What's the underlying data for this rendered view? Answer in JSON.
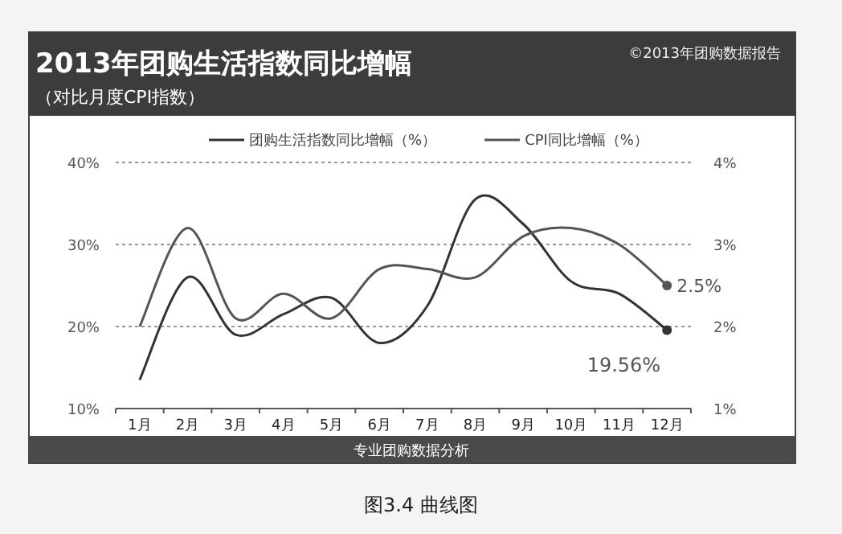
{
  "chart_data": {
    "type": "line",
    "title": "2013年团购生活指数同比增幅",
    "subtitle": "（对比月度CPI指数）",
    "annotations": [
      "©2013年团购数据报告",
      "专业团购数据分析",
      "图3.4  曲线图"
    ],
    "categories": [
      "1月",
      "2月",
      "3月",
      "4月",
      "5月",
      "6月",
      "7月",
      "8月",
      "9月",
      "10月",
      "11月",
      "12月"
    ],
    "series": [
      {
        "name": "团购生活指数同比增幅（%）",
        "color": "#333333",
        "values": [
          13.5,
          26,
          19,
          21.5,
          23.5,
          18,
          22.5,
          35.5,
          32.5,
          25.5,
          24,
          19.56
        ],
        "value_labels": [
          null,
          null,
          null,
          null,
          null,
          null,
          null,
          null,
          null,
          null,
          null,
          "19.56%"
        ]
      },
      {
        "name": "CPI同比增幅（%）",
        "color": "#555555",
        "axis": "y2",
        "values": [
          2.0,
          3.2,
          2.1,
          2.4,
          2.1,
          2.7,
          2.7,
          2.6,
          3.1,
          3.2,
          3.0,
          2.5
        ],
        "value_labels": [
          null,
          null,
          null,
          null,
          null,
          null,
          null,
          null,
          null,
          null,
          null,
          "2.5%"
        ]
      }
    ],
    "ylim": [
      10,
      40
    ],
    "yticks": [
      {
        "value": 10,
        "label": "10%"
      },
      {
        "value": 20,
        "label": "20%"
      },
      {
        "value": 30,
        "label": "30%"
      },
      {
        "value": 40,
        "label": "40%"
      }
    ],
    "y2lim": [
      1,
      4
    ],
    "y2ticks": [
      {
        "value": 1,
        "label": "1%"
      },
      {
        "value": 2,
        "label": "2%"
      },
      {
        "value": 3,
        "label": "3%"
      },
      {
        "value": 4,
        "label": "4%"
      }
    ],
    "grid": "y",
    "legend": "top"
  }
}
